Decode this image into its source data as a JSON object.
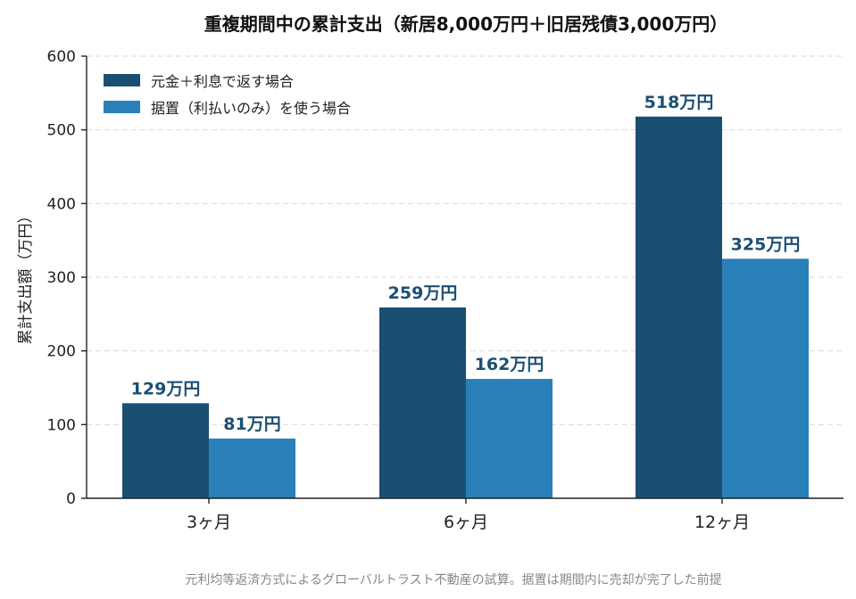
{
  "chart_data": {
    "type": "bar",
    "title": "重複期間中の累計支出（新居8,000万円＋旧居残債3,000万円）",
    "xlabel": "",
    "ylabel": "累計支出額（万円）",
    "categories": [
      "3ヶ月",
      "6ヶ月",
      "12ヶ月"
    ],
    "ylim": [
      0,
      600
    ],
    "yticks": [
      "0",
      "100",
      "200",
      "300",
      "400",
      "500",
      "600"
    ],
    "grid": true,
    "legend_position": "top-left",
    "series": [
      {
        "name": "元金＋利息で返す場合",
        "color": "#1b4f72",
        "values": [
          129,
          259,
          518
        ],
        "labels": [
          "129万円",
          "259万円",
          "518万円"
        ]
      },
      {
        "name": "据置（利払いのみ）を使う場合",
        "color": "#2980b9",
        "values": [
          81,
          162,
          325
        ],
        "labels": [
          "81万円",
          "162万円",
          "325万円"
        ]
      }
    ],
    "label_color": "#1b4f72"
  },
  "footnote": "元利均等返済方式によるグローバルトラスト不動産の試算。据置は期間内に売却が完了した前提"
}
